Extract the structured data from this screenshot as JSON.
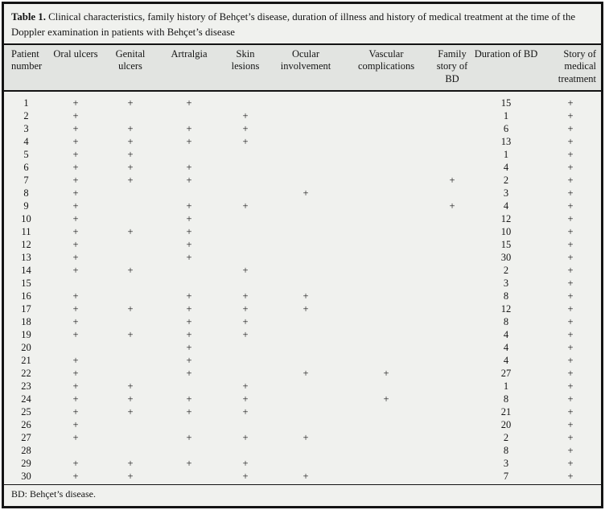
{
  "card": {
    "title": {
      "label": "Table 1.",
      "text": " Clinical characteristics, family history of Behçet’s disease, duration of illness and history of medical treatment at the time of the Doppler examination in patients with Behçet’s disease"
    },
    "footnote": "BD: Behçet’s disease."
  },
  "table": {
    "columns": [
      "Patient number",
      "Oral ulcers",
      "Genital ulcers",
      "Artralgia",
      "Skin lesions",
      "Ocular involvement",
      "Vascular complications",
      "Family story of BD",
      "Duration of BD",
      "Story of medical treatment"
    ],
    "rows": [
      [
        "1",
        "+",
        "+",
        "+",
        "",
        "",
        "",
        "",
        "15",
        "+"
      ],
      [
        "2",
        "+",
        "",
        "",
        "+",
        "",
        "",
        "",
        "1",
        "+"
      ],
      [
        "3",
        "+",
        "+",
        "+",
        "+",
        "",
        "",
        "",
        "6",
        "+"
      ],
      [
        "4",
        "+",
        "+",
        "+",
        "+",
        "",
        "",
        "",
        "13",
        "+"
      ],
      [
        "5",
        "+",
        "+",
        "",
        "",
        "",
        "",
        "",
        "1",
        "+"
      ],
      [
        "6",
        "+",
        "+",
        "+",
        "",
        "",
        "",
        "",
        "4",
        "+"
      ],
      [
        "7",
        "+",
        "+",
        "+",
        "",
        "",
        "",
        "+",
        "2",
        "+"
      ],
      [
        "8",
        "+",
        "",
        "",
        "",
        "+",
        "",
        "",
        "3",
        "+"
      ],
      [
        "9",
        "+",
        "",
        "+",
        "+",
        "",
        "",
        "+",
        "4",
        "+"
      ],
      [
        "10",
        "+",
        "",
        "+",
        "",
        "",
        "",
        "",
        "12",
        "+"
      ],
      [
        "11",
        "+",
        "+",
        "+",
        "",
        "",
        "",
        "",
        "10",
        "+"
      ],
      [
        "12",
        "+",
        "",
        "+",
        "",
        "",
        "",
        "",
        "15",
        "+"
      ],
      [
        "13",
        "+",
        "",
        "+",
        "",
        "",
        "",
        "",
        "30",
        "+"
      ],
      [
        "14",
        "+",
        "+",
        "",
        "+",
        "",
        "",
        "",
        "2",
        "+"
      ],
      [
        "15",
        "",
        "",
        "",
        "",
        "",
        "",
        "",
        "3",
        "+"
      ],
      [
        "16",
        "+",
        "",
        "+",
        "+",
        "+",
        "",
        "",
        "8",
        "+"
      ],
      [
        "17",
        "+",
        "+",
        "+",
        "+",
        "+",
        "",
        "",
        "12",
        "+"
      ],
      [
        "18",
        "+",
        "",
        "+",
        "+",
        "",
        "",
        "",
        "8",
        "+"
      ],
      [
        "19",
        "+",
        "+",
        "+",
        "+",
        "",
        "",
        "",
        "4",
        "+"
      ],
      [
        "20",
        "",
        "",
        "+",
        "",
        "",
        "",
        "",
        "4",
        "+"
      ],
      [
        "21",
        "+",
        "",
        "+",
        "",
        "",
        "",
        "",
        "4",
        "+"
      ],
      [
        "22",
        "+",
        "",
        "+",
        "",
        "+",
        "+",
        "",
        "27",
        "+"
      ],
      [
        "23",
        "+",
        "+",
        "",
        "+",
        "",
        "",
        "",
        "1",
        "+"
      ],
      [
        "24",
        "+",
        "+",
        "+",
        "+",
        "",
        "+",
        "",
        "8",
        "+"
      ],
      [
        "25",
        "+",
        "+",
        "+",
        "+",
        "",
        "",
        "",
        "21",
        "+"
      ],
      [
        "26",
        "+",
        "",
        "",
        "",
        "",
        "",
        "",
        "20",
        "+"
      ],
      [
        "27",
        "+",
        "",
        "+",
        "+",
        "+",
        "",
        "",
        "2",
        "+"
      ],
      [
        "28",
        "",
        "",
        "",
        "",
        "",
        "",
        "",
        "8",
        "+"
      ],
      [
        "29",
        "+",
        "+",
        "+",
        "+",
        "",
        "",
        "",
        "3",
        "+"
      ],
      [
        "30",
        "+",
        "+",
        "",
        "+",
        "+",
        "",
        "",
        "7",
        "+"
      ]
    ]
  }
}
